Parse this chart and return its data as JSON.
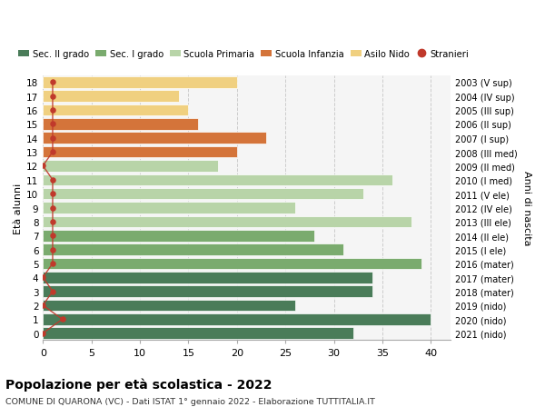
{
  "ages": [
    18,
    17,
    16,
    15,
    14,
    13,
    12,
    11,
    10,
    9,
    8,
    7,
    6,
    5,
    4,
    3,
    2,
    1,
    0
  ],
  "years": [
    "2003 (V sup)",
    "2004 (IV sup)",
    "2005 (III sup)",
    "2006 (II sup)",
    "2007 (I sup)",
    "2008 (III med)",
    "2009 (II med)",
    "2010 (I med)",
    "2011 (V ele)",
    "2012 (IV ele)",
    "2013 (III ele)",
    "2014 (II ele)",
    "2015 (I ele)",
    "2016 (mater)",
    "2017 (mater)",
    "2018 (mater)",
    "2019 (nido)",
    "2020 (nido)",
    "2021 (nido)"
  ],
  "bar_values": [
    32,
    40,
    26,
    34,
    34,
    39,
    31,
    28,
    38,
    26,
    33,
    36,
    18,
    20,
    23,
    16,
    15,
    14,
    20
  ],
  "bar_colors": [
    "#4a7c59",
    "#4a7c59",
    "#4a7c59",
    "#4a7c59",
    "#4a7c59",
    "#7aab6e",
    "#7aab6e",
    "#7aab6e",
    "#b8d4a8",
    "#b8d4a8",
    "#b8d4a8",
    "#b8d4a8",
    "#b8d4a8",
    "#d4743a",
    "#d4743a",
    "#d4743a",
    "#f0d080",
    "#f0d080",
    "#f0d080"
  ],
  "stranieri_values": [
    0,
    2,
    0,
    1,
    0,
    1,
    1,
    1,
    1,
    1,
    1,
    1,
    0,
    1,
    1,
    1,
    1,
    1,
    1
  ],
  "stranieri_color": "#c0392b",
  "legend_labels": [
    "Sec. II grado",
    "Sec. I grado",
    "Scuola Primaria",
    "Scuola Infanzia",
    "Asilo Nido",
    "Stranieri"
  ],
  "legend_colors": [
    "#4a7c59",
    "#7aab6e",
    "#b8d4a8",
    "#d4743a",
    "#f0d080",
    "#c0392b"
  ],
  "title": "Popolazione per età scolastica - 2022",
  "subtitle": "COMUNE DI QUARONA (VC) - Dati ISTAT 1° gennaio 2022 - Elaborazione TUTTITALIA.IT",
  "ylabel_left": "Età alunni",
  "ylabel_right": "Anni di nascita",
  "xlim": [
    0,
    42
  ],
  "xticks": [
    0,
    5,
    10,
    15,
    20,
    25,
    30,
    35,
    40
  ],
  "bg_color": "#ffffff",
  "plot_bg_color": "#f5f5f5"
}
